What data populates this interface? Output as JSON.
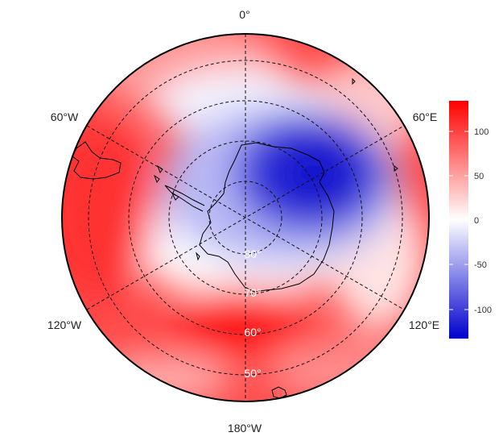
{
  "map": {
    "projection": "south-polar-stereographic",
    "field": "diverging-anomaly",
    "longitude_labels": [
      {
        "id": "0",
        "text": "0°"
      },
      {
        "id": "60e",
        "text": "60°E"
      },
      {
        "id": "120e",
        "text": "120°E"
      },
      {
        "id": "180",
        "text": "180°W"
      },
      {
        "id": "120w",
        "text": "120°W"
      },
      {
        "id": "60w",
        "text": "60°W"
      }
    ],
    "latitude_labels": [
      "80°",
      "70°",
      "60°",
      "50°"
    ],
    "graticule": "dashed"
  },
  "colorbar": {
    "ticks": [
      "100",
      "50",
      "0",
      "-50",
      "-100"
    ],
    "range": [
      -130,
      130
    ],
    "colors": {
      "low": "#0000cc",
      "mid": "#ffffff",
      "high": "#ff0000"
    }
  }
}
